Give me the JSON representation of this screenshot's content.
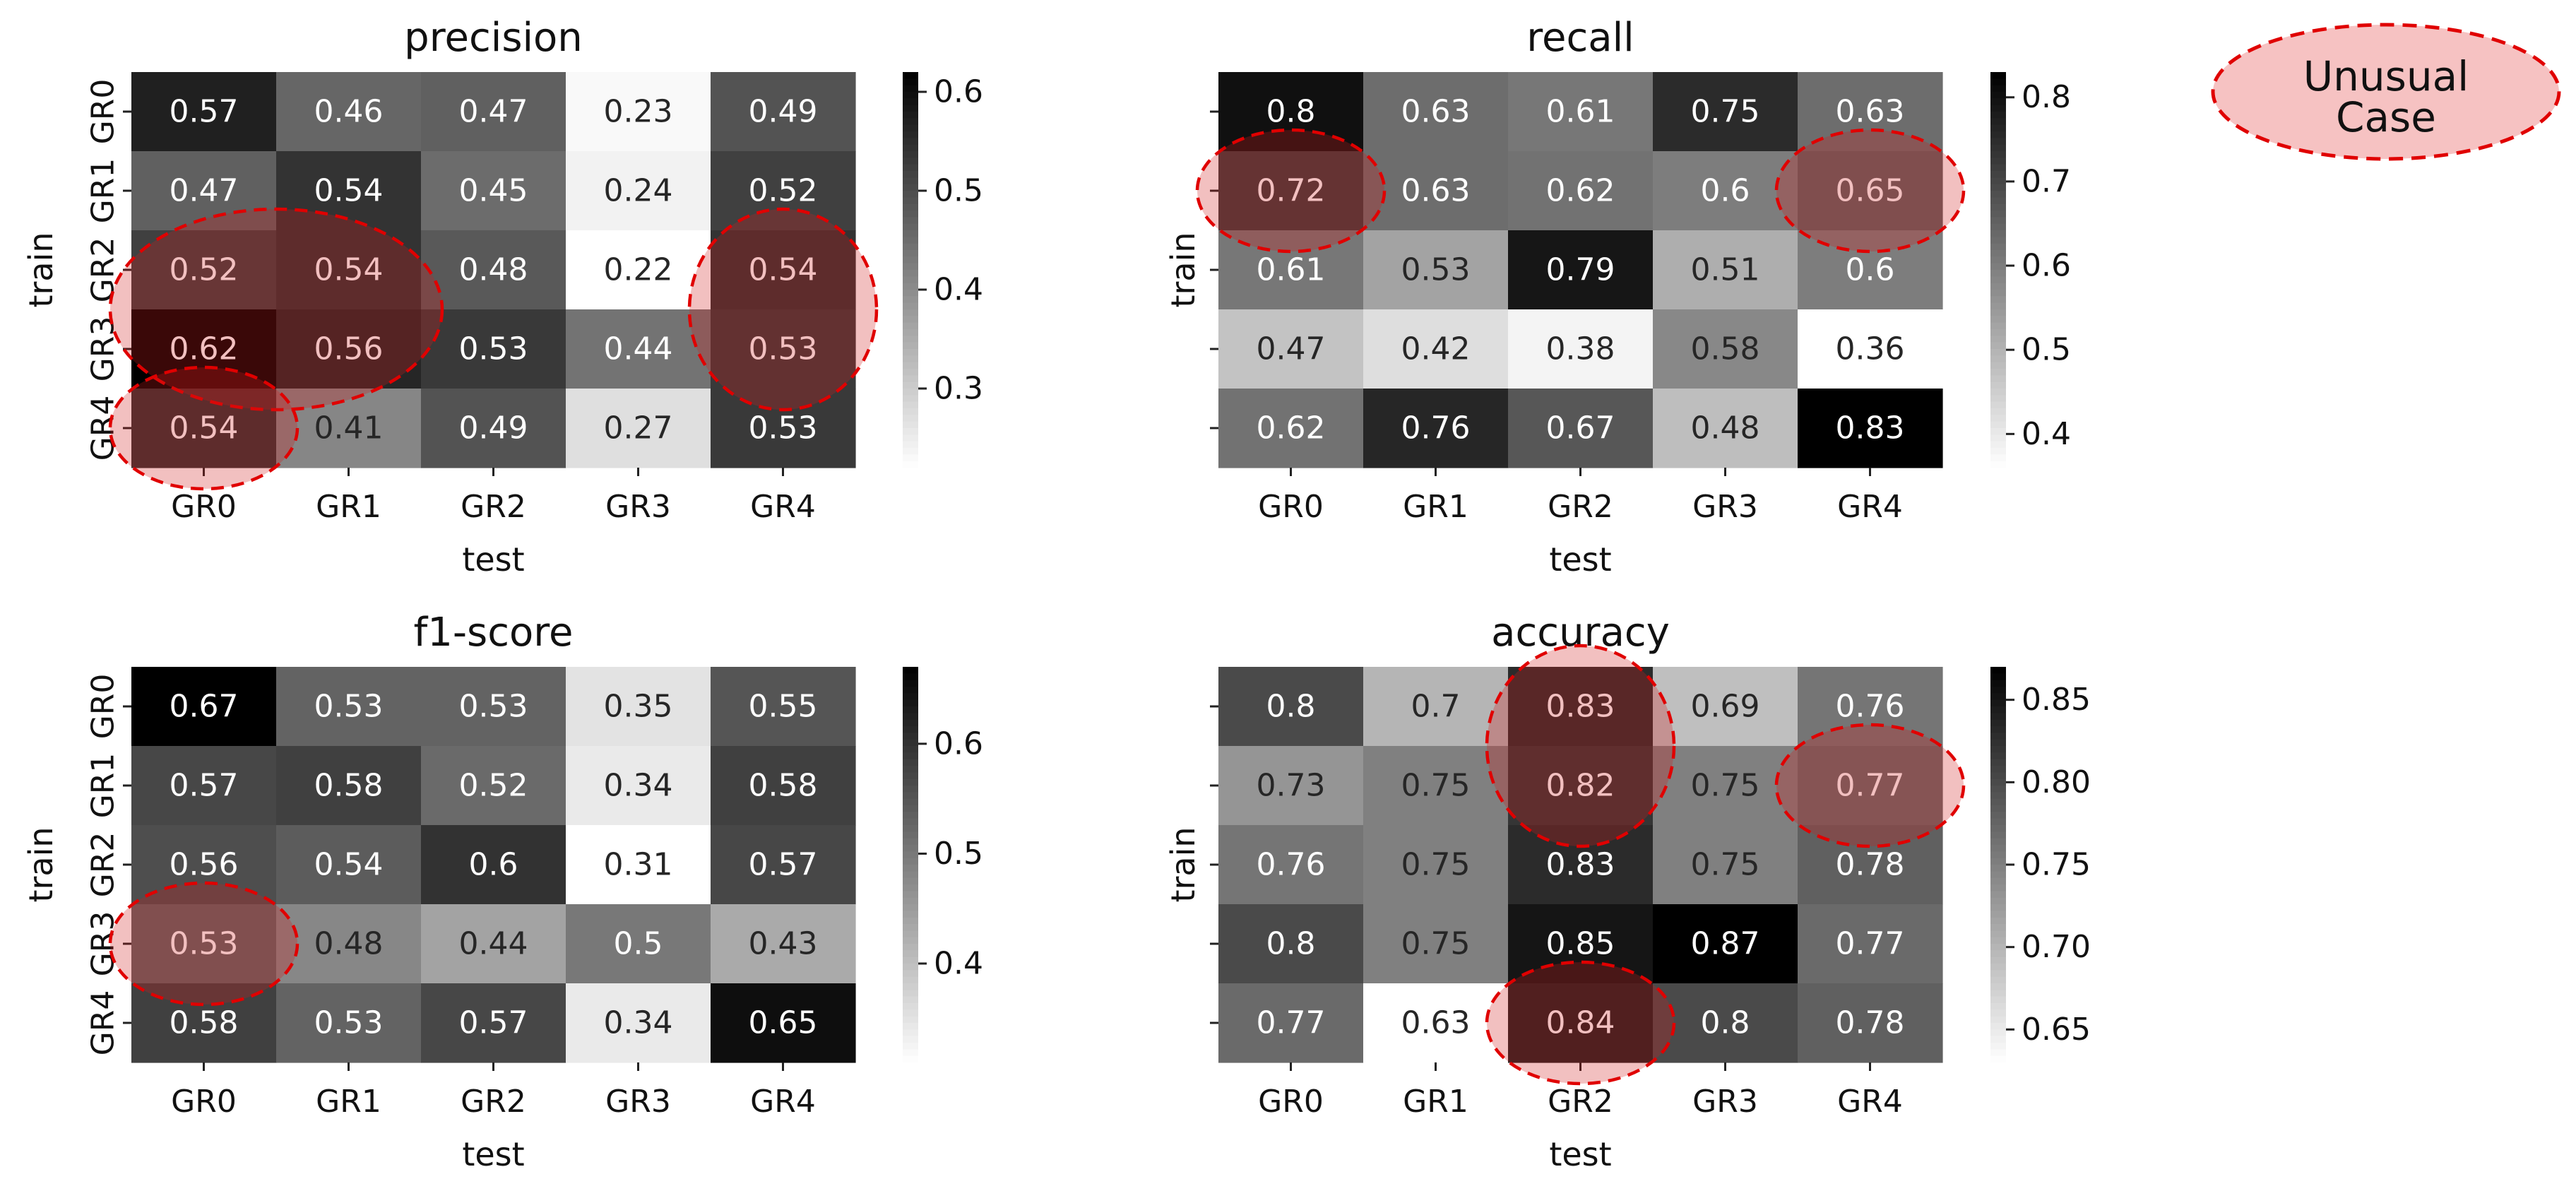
{
  "figure_legend": {
    "label_line1": "Unusual",
    "label_line2": "Case",
    "fill": "#f6c2c2",
    "stroke": "#e00000"
  },
  "colors": {
    "cell_text_dark": "#ffffff",
    "cell_text_light": "#262626",
    "highlight_fill": "#d21e1e",
    "highlight_stroke": "#e00000"
  },
  "chart_data": [
    {
      "type": "heatmap",
      "title": "precision",
      "xlabel": "test",
      "ylabel": "train",
      "x_categories": [
        "GR0",
        "GR1",
        "GR2",
        "GR3",
        "GR4"
      ],
      "y_categories": [
        "GR0",
        "GR1",
        "GR2",
        "GR3",
        "GR4"
      ],
      "values": [
        [
          0.57,
          0.46,
          0.47,
          0.23,
          0.49
        ],
        [
          0.47,
          0.54,
          0.45,
          0.24,
          0.52
        ],
        [
          0.52,
          0.54,
          0.48,
          0.22,
          0.54
        ],
        [
          0.62,
          0.56,
          0.53,
          0.44,
          0.53
        ],
        [
          0.54,
          0.41,
          0.49,
          0.27,
          0.53
        ]
      ],
      "cell_labels": [
        [
          "0.57",
          "0.46",
          "0.47",
          "0.23",
          "0.49"
        ],
        [
          "0.47",
          "0.54",
          "0.45",
          "0.24",
          "0.52"
        ],
        [
          "0.52",
          "0.54",
          "0.48",
          "0.22",
          "0.54"
        ],
        [
          "0.62",
          "0.56",
          "0.53",
          "0.44",
          "0.53"
        ],
        [
          "0.54",
          "0.41",
          "0.49",
          "0.27",
          "0.53"
        ]
      ],
      "colorbar": {
        "range": [
          0.22,
          0.62
        ],
        "ticks": [
          0.3,
          0.4,
          0.5,
          0.6
        ],
        "tick_labels": [
          "0.3",
          "0.4",
          "0.5",
          "0.6"
        ]
      },
      "unusual_cases": [
        {
          "rows": [
            2,
            3
          ],
          "cols": [
            0,
            1
          ]
        },
        {
          "rows": [
            2,
            3
          ],
          "cols": [
            4,
            4
          ]
        },
        {
          "rows": [
            4,
            4
          ],
          "cols": [
            0,
            0
          ]
        }
      ]
    },
    {
      "type": "heatmap",
      "title": "recall",
      "xlabel": "test",
      "ylabel": "train",
      "x_categories": [
        "GR0",
        "GR1",
        "GR2",
        "GR3",
        "GR4"
      ],
      "y_categories": [
        "",
        "",
        "",
        "",
        ""
      ],
      "values": [
        [
          0.8,
          0.63,
          0.61,
          0.75,
          0.63
        ],
        [
          0.72,
          0.63,
          0.62,
          0.6,
          0.65
        ],
        [
          0.61,
          0.53,
          0.79,
          0.51,
          0.6
        ],
        [
          0.47,
          0.42,
          0.38,
          0.58,
          0.36
        ],
        [
          0.62,
          0.76,
          0.67,
          0.48,
          0.83
        ]
      ],
      "cell_labels": [
        [
          "0.8",
          "0.63",
          "0.61",
          "0.75",
          "0.63"
        ],
        [
          "0.72",
          "0.63",
          "0.62",
          "0.6",
          "0.65"
        ],
        [
          "0.61",
          "0.53",
          "0.79",
          "0.51",
          "0.6"
        ],
        [
          "0.47",
          "0.42",
          "0.38",
          "0.58",
          "0.36"
        ],
        [
          "0.62",
          "0.76",
          "0.67",
          "0.48",
          "0.83"
        ]
      ],
      "colorbar": {
        "range": [
          0.36,
          0.83
        ],
        "ticks": [
          0.4,
          0.5,
          0.6,
          0.7,
          0.8
        ],
        "tick_labels": [
          "0.4",
          "0.5",
          "0.6",
          "0.7",
          "0.8"
        ]
      },
      "unusual_cases": [
        {
          "rows": [
            1,
            1
          ],
          "cols": [
            0,
            0
          ]
        },
        {
          "rows": [
            1,
            1
          ],
          "cols": [
            4,
            4
          ]
        }
      ]
    },
    {
      "type": "heatmap",
      "title": "f1-score",
      "xlabel": "test",
      "ylabel": "train",
      "x_categories": [
        "GR0",
        "GR1",
        "GR2",
        "GR3",
        "GR4"
      ],
      "y_categories": [
        "GR0",
        "GR1",
        "GR2",
        "GR3",
        "GR4"
      ],
      "values": [
        [
          0.67,
          0.53,
          0.53,
          0.35,
          0.55
        ],
        [
          0.57,
          0.58,
          0.52,
          0.34,
          0.58
        ],
        [
          0.56,
          0.54,
          0.6,
          0.31,
          0.57
        ],
        [
          0.53,
          0.48,
          0.44,
          0.5,
          0.43
        ],
        [
          0.58,
          0.53,
          0.57,
          0.34,
          0.65
        ]
      ],
      "cell_labels": [
        [
          "0.67",
          "0.53",
          "0.53",
          "0.35",
          "0.55"
        ],
        [
          "0.57",
          "0.58",
          "0.52",
          "0.34",
          "0.58"
        ],
        [
          "0.56",
          "0.54",
          "0.6",
          "0.31",
          "0.57"
        ],
        [
          "0.53",
          "0.48",
          "0.44",
          "0.5",
          "0.43"
        ],
        [
          "0.58",
          "0.53",
          "0.57",
          "0.34",
          "0.65"
        ]
      ],
      "colorbar": {
        "range": [
          0.31,
          0.67
        ],
        "ticks": [
          0.4,
          0.5,
          0.6
        ],
        "tick_labels": [
          "0.4",
          "0.5",
          "0.6"
        ]
      },
      "unusual_cases": [
        {
          "rows": [
            3,
            3
          ],
          "cols": [
            0,
            0
          ]
        }
      ]
    },
    {
      "type": "heatmap",
      "title": "accuracy",
      "xlabel": "test",
      "ylabel": "train",
      "x_categories": [
        "GR0",
        "GR1",
        "GR2",
        "GR3",
        "GR4"
      ],
      "y_categories": [
        "",
        "",
        "",
        "",
        ""
      ],
      "values": [
        [
          0.8,
          0.7,
          0.83,
          0.69,
          0.76
        ],
        [
          0.73,
          0.75,
          0.82,
          0.75,
          0.77
        ],
        [
          0.76,
          0.75,
          0.83,
          0.75,
          0.78
        ],
        [
          0.8,
          0.75,
          0.85,
          0.87,
          0.77
        ],
        [
          0.77,
          0.63,
          0.84,
          0.8,
          0.78
        ]
      ],
      "cell_labels": [
        [
          "0.8",
          "0.7",
          "0.83",
          "0.69",
          "0.76"
        ],
        [
          "0.73",
          "0.75",
          "0.82",
          "0.75",
          "0.77"
        ],
        [
          "0.76",
          "0.75",
          "0.83",
          "0.75",
          "0.78"
        ],
        [
          "0.8",
          "0.75",
          "0.85",
          "0.87",
          "0.77"
        ],
        [
          "0.77",
          "0.63",
          "0.84",
          "0.8",
          "0.78"
        ]
      ],
      "colorbar": {
        "range": [
          0.63,
          0.87
        ],
        "ticks": [
          0.65,
          0.7,
          0.75,
          0.8,
          0.85
        ],
        "tick_labels": [
          "0.65",
          "0.70",
          "0.75",
          "0.80",
          "0.85"
        ]
      },
      "unusual_cases": [
        {
          "rows": [
            0,
            1
          ],
          "cols": [
            2,
            2
          ]
        },
        {
          "rows": [
            1,
            1
          ],
          "cols": [
            4,
            4
          ]
        },
        {
          "rows": [
            4,
            4
          ],
          "cols": [
            2,
            2
          ]
        }
      ]
    }
  ]
}
